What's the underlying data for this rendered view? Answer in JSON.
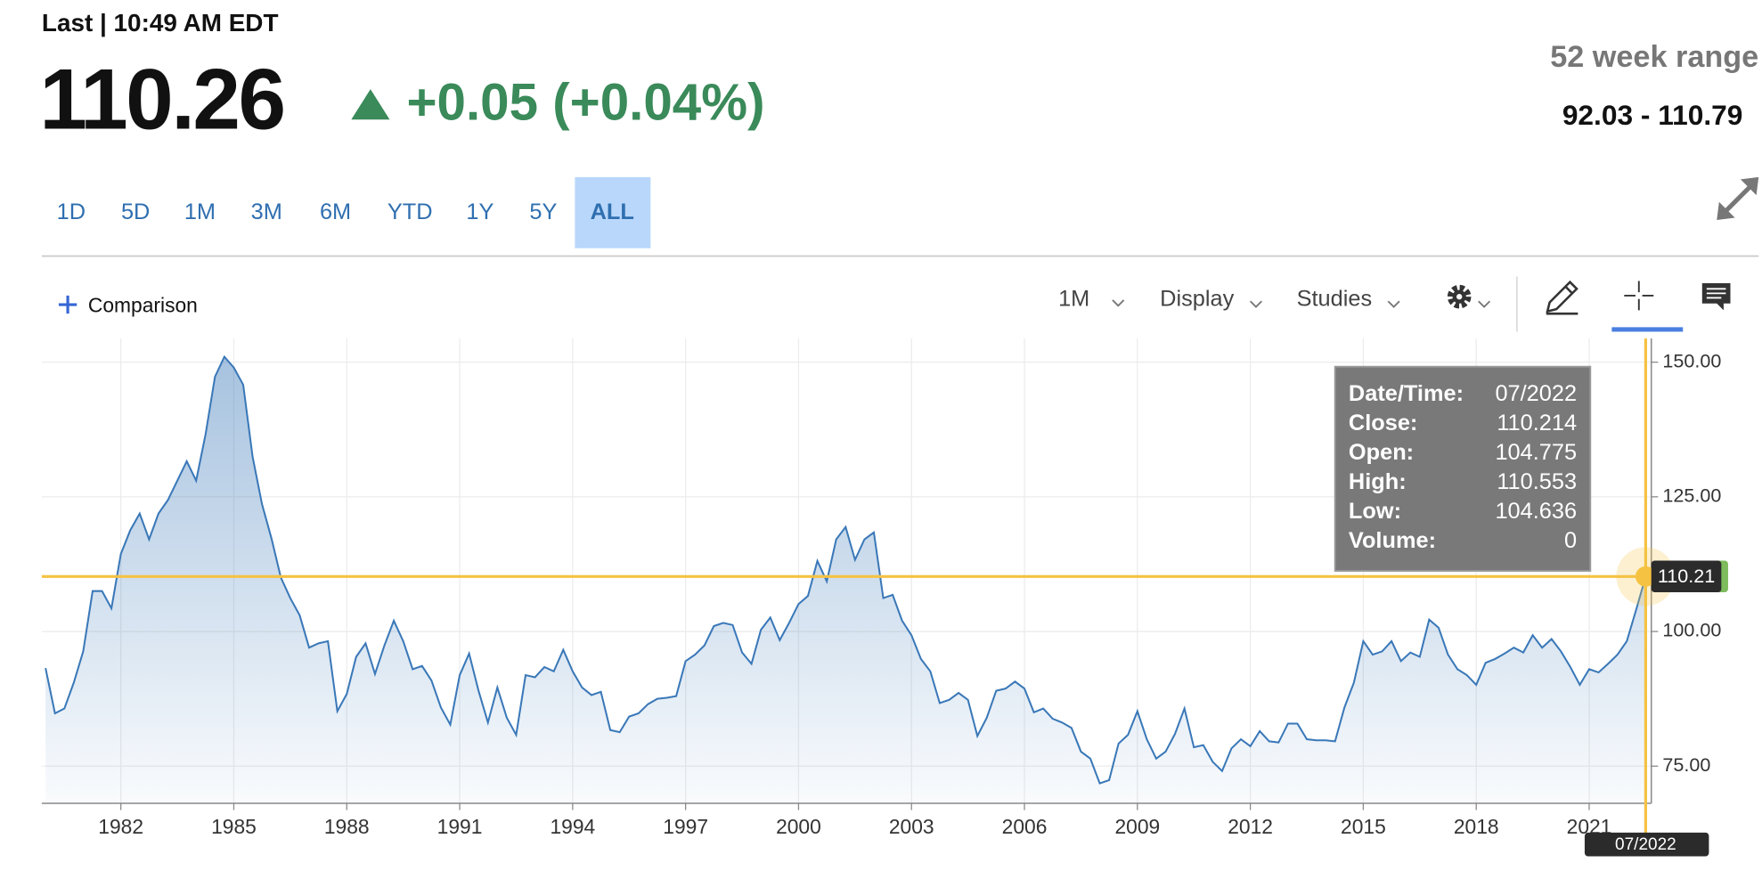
{
  "header": {
    "last": "Last | 10:49 AM EDT",
    "price": "110.26",
    "change": "+0.05 (+0.04%)",
    "range_label": "52 week range",
    "range": "92.03 - 110.79"
  },
  "tabs": [
    {
      "label": "1D"
    },
    {
      "label": "5D"
    },
    {
      "label": "1M"
    },
    {
      "label": "3M"
    },
    {
      "label": "6M"
    },
    {
      "label": "YTD"
    },
    {
      "label": "1Y"
    },
    {
      "label": "5Y"
    },
    {
      "label": "ALL",
      "active": true
    }
  ],
  "toolbar": {
    "comparison": "Comparison",
    "interval": "1M",
    "display": "Display",
    "studies": "Studies"
  },
  "chart_data": {
    "type": "line",
    "color": "#3a78b8",
    "grid": true,
    "x": [
      1980,
      1980.25,
      1980.5,
      1980.75,
      1981,
      1981.25,
      1981.5,
      1981.75,
      1982,
      1982.25,
      1982.5,
      1982.75,
      1983,
      1983.25,
      1983.5,
      1983.75,
      1984,
      1984.25,
      1984.5,
      1984.75,
      1985,
      1985.25,
      1985.5,
      1985.75,
      1986,
      1986.25,
      1986.5,
      1986.75,
      1987,
      1987.25,
      1987.5,
      1987.75,
      1988,
      1988.25,
      1988.5,
      1988.75,
      1989,
      1989.25,
      1989.5,
      1989.75,
      1990,
      1990.25,
      1990.5,
      1990.75,
      1991,
      1991.25,
      1991.5,
      1991.75,
      1992,
      1992.25,
      1992.5,
      1992.75,
      1993,
      1993.25,
      1993.5,
      1993.75,
      1994,
      1994.25,
      1994.5,
      1994.75,
      1995,
      1995.25,
      1995.5,
      1995.75,
      1996,
      1996.25,
      1996.5,
      1996.75,
      1997,
      1997.25,
      1997.5,
      1997.75,
      1998,
      1998.25,
      1998.5,
      1998.75,
      1999,
      1999.25,
      1999.5,
      1999.75,
      2000,
      2000.25,
      2000.5,
      2000.75,
      2001,
      2001.25,
      2001.5,
      2001.75,
      2002,
      2002.25,
      2002.5,
      2002.75,
      2003,
      2003.25,
      2003.5,
      2003.75,
      2004,
      2004.25,
      2004.5,
      2004.75,
      2005,
      2005.25,
      2005.5,
      2005.75,
      2006,
      2006.25,
      2006.5,
      2006.75,
      2007,
      2007.25,
      2007.5,
      2007.75,
      2008,
      2008.25,
      2008.5,
      2008.75,
      2009,
      2009.25,
      2009.5,
      2009.75,
      2010,
      2010.25,
      2010.5,
      2010.75,
      2011,
      2011.25,
      2011.5,
      2011.75,
      2012,
      2012.25,
      2012.5,
      2012.75,
      2013,
      2013.25,
      2013.5,
      2013.75,
      2014,
      2014.25,
      2014.5,
      2014.75,
      2015,
      2015.25,
      2015.5,
      2015.75,
      2016,
      2016.25,
      2016.5,
      2016.75,
      2017,
      2017.25,
      2017.5,
      2017.75,
      2018,
      2018.25,
      2018.5,
      2018.75,
      2019,
      2019.25,
      2019.5,
      2019.75,
      2020,
      2020.25,
      2020.5,
      2020.75,
      2021,
      2021.25,
      2021.5,
      2021.75,
      2022,
      2022.25,
      2022.5
    ],
    "values": [
      93.2,
      84.8,
      85.7,
      90.5,
      96.3,
      107.5,
      107.5,
      104.3,
      114.4,
      118.8,
      121.9,
      117.1,
      121.9,
      124.4,
      128,
      131.6,
      128,
      136.6,
      147.3,
      151,
      149,
      145.8,
      132.4,
      123.6,
      117.3,
      110,
      106.2,
      103,
      97,
      97.8,
      98.2,
      85.2,
      88.4,
      95.3,
      97.8,
      92.1,
      97.4,
      102,
      98.2,
      93,
      93.6,
      90.9,
      85.9,
      82.7,
      91.9,
      95.9,
      89,
      83.1,
      89.6,
      84,
      80.8,
      91.9,
      91.5,
      93.4,
      92.6,
      96.6,
      92.6,
      89.6,
      88.2,
      88.8,
      81.7,
      81.3,
      84.2,
      84.8,
      86.5,
      87.5,
      87.7,
      88,
      94.5,
      95.7,
      97.4,
      101,
      101.6,
      101.2,
      96.1,
      94,
      100.3,
      102.6,
      98.4,
      101.6,
      105.1,
      106.6,
      113.1,
      109.3,
      117.1,
      119.4,
      113.3,
      117.1,
      118.4,
      106.2,
      106.8,
      102,
      99.3,
      94.9,
      92.6,
      86.7,
      87.3,
      88.6,
      87.3,
      80.6,
      84,
      89,
      89.4,
      90.7,
      89.4,
      85,
      85.7,
      83.8,
      83.1,
      82.1,
      77.7,
      76.4,
      71.8,
      72.4,
      79.2,
      80.8,
      85.2,
      80,
      76.4,
      77.7,
      81,
      85.7,
      78.5,
      78.9,
      75.8,
      74.1,
      78.3,
      80,
      78.7,
      81.5,
      79.6,
      79.4,
      82.9,
      82.9,
      80,
      79.8,
      79.8,
      79.6,
      85.9,
      90.5,
      98.2,
      95.7,
      96.3,
      98.2,
      94.5,
      96.1,
      95.3,
      102.2,
      100.7,
      95.7,
      93,
      91.9,
      90.1,
      94.2,
      94.9,
      95.9,
      97,
      96.1,
      99.3,
      97,
      98.6,
      96.3,
      93.4,
      90.1,
      93,
      92.4,
      94,
      95.7,
      98.2,
      104.1,
      110.2
    ],
    "xlim": [
      1979.9,
      2022.65
    ],
    "xticks": [
      1982,
      1985,
      1988,
      1991,
      1994,
      1997,
      2000,
      2003,
      2006,
      2009,
      2012,
      2015,
      2018,
      2021
    ],
    "ylim": [
      68.1,
      154.4
    ],
    "yticks": [
      {
        "value": 75,
        "label": "75.00"
      },
      {
        "value": 100,
        "label": "100.00"
      },
      {
        "value": 125,
        "label": "125.00"
      },
      {
        "value": 150,
        "label": "150.00"
      }
    ],
    "crosshair": {
      "x": 2022.5,
      "y": 110.214,
      "y_label": "110.21",
      "x_label": "07/2022",
      "color": "#f5c242"
    },
    "tooltip": [
      {
        "label": "Date/Time:",
        "value": "07/2022"
      },
      {
        "label": "Close:",
        "value": 110.214
      },
      {
        "label": "Open:",
        "value": 104.775
      },
      {
        "label": "High:",
        "value": 110.553
      },
      {
        "label": "Low:",
        "value": 104.636
      },
      {
        "label": "Volume:",
        "value": 0
      }
    ]
  }
}
